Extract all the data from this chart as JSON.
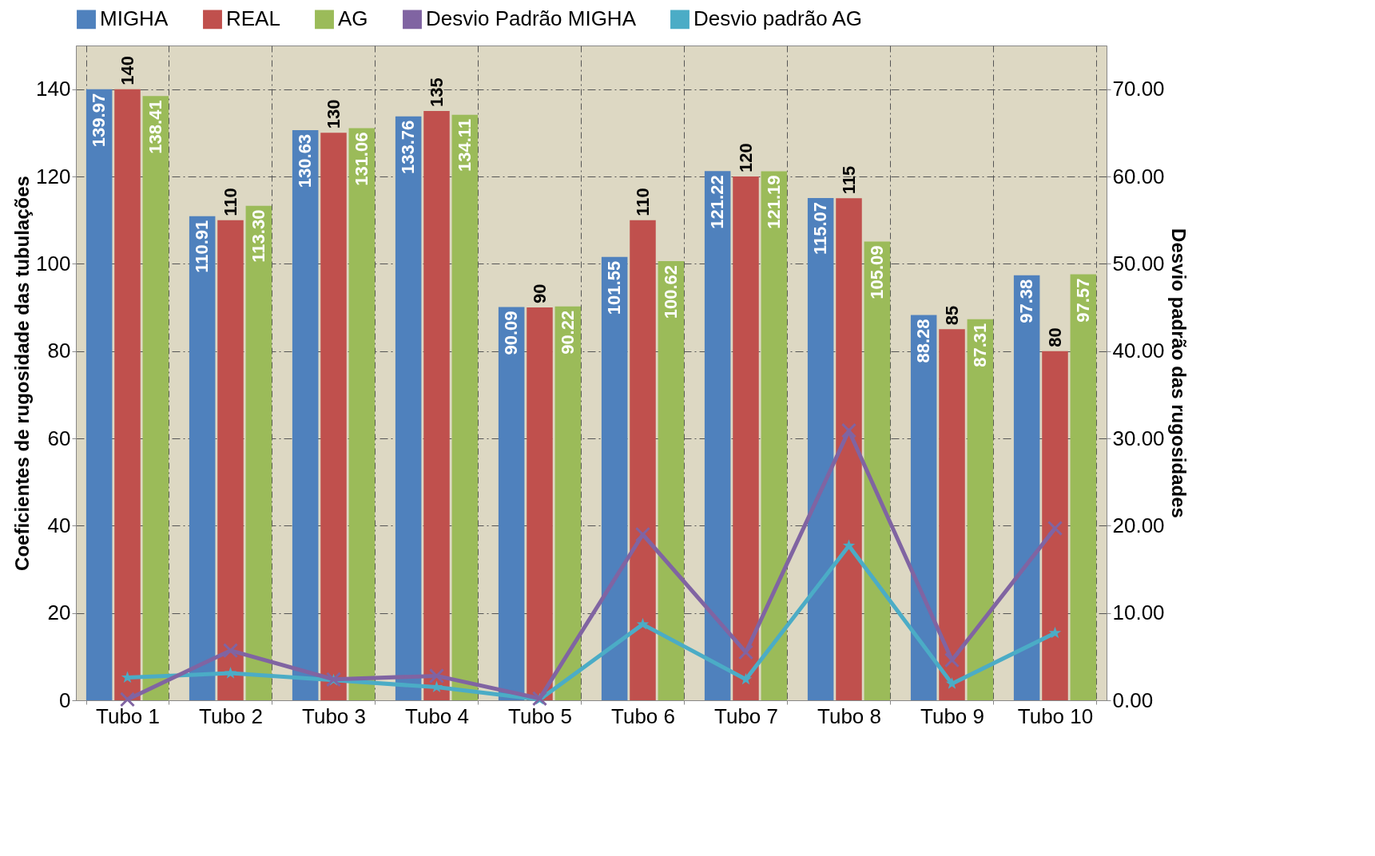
{
  "chart_data": {
    "type": "bar",
    "xlabel": null,
    "ylabel": "Coeficientes de rugosidade das tubulações",
    "y2label": "Desvio padrão das rugosidades",
    "categories": [
      "Tubo 1",
      "Tubo 2",
      "Tubo 3",
      "Tubo 4",
      "Tubo 5",
      "Tubo 6",
      "Tubo 7",
      "Tubo 8",
      "Tubo 9",
      "Tubo 10"
    ],
    "ylim": [
      0,
      150
    ],
    "yticks": [
      0,
      20,
      40,
      60,
      80,
      100,
      120,
      140
    ],
    "y2lim": [
      0,
      75
    ],
    "y2ticks": [
      {
        "value": 0,
        "label": "0.00"
      },
      {
        "value": 10,
        "label": "10.00"
      },
      {
        "value": 20,
        "label": "20.00"
      },
      {
        "value": 30,
        "label": "30.00"
      },
      {
        "value": 40,
        "label": "40.00"
      },
      {
        "value": 50,
        "label": "50.00"
      },
      {
        "value": 60,
        "label": "60.00"
      },
      {
        "value": 70,
        "label": "70.00"
      }
    ],
    "grid": true,
    "legend": "top",
    "series": [
      {
        "name": "MIGHA",
        "type": "bar",
        "color": "#4f81bd",
        "values": [
          139.97,
          110.91,
          130.63,
          133.76,
          90.09,
          101.55,
          121.22,
          115.07,
          88.28,
          97.38
        ],
        "value_labels": [
          "139.97",
          "110.91",
          "130.63",
          "133.76",
          "90.09",
          "101.55",
          "121.22",
          "115.07",
          "88.28",
          "97.38"
        ]
      },
      {
        "name": "REAL",
        "type": "bar",
        "color": "#c0504d",
        "values": [
          140,
          110,
          130,
          135,
          90,
          110,
          120,
          115,
          85,
          80
        ],
        "value_labels": [
          "140",
          "110",
          "130",
          "135",
          "90",
          "110",
          "120",
          "115",
          "85",
          "80"
        ]
      },
      {
        "name": "AG",
        "type": "bar",
        "color": "#9bbb59",
        "values": [
          138.41,
          113.3,
          131.06,
          134.11,
          90.22,
          100.62,
          121.19,
          105.09,
          87.31,
          97.57
        ],
        "value_labels": [
          "138.41",
          "113.30",
          "131.06",
          "134.11",
          "90.22",
          "100.62",
          "121.19",
          "105.09",
          "87.31",
          "97.57"
        ]
      },
      {
        "name": "Desvio Padrão MIGHA",
        "type": "line",
        "axis": "y2",
        "marker": "cross",
        "color": "#8064a2",
        "values": [
          0.1,
          5.7,
          2.4,
          2.8,
          0.2,
          19.0,
          5.5,
          30.9,
          4.6,
          19.7
        ]
      },
      {
        "name": "Desvio padrão AG",
        "type": "line",
        "axis": "y2",
        "marker": "star",
        "color": "#4bacc6",
        "values": [
          2.6,
          3.1,
          2.3,
          1.5,
          0.1,
          8.7,
          2.4,
          17.7,
          1.9,
          7.7
        ]
      }
    ]
  }
}
